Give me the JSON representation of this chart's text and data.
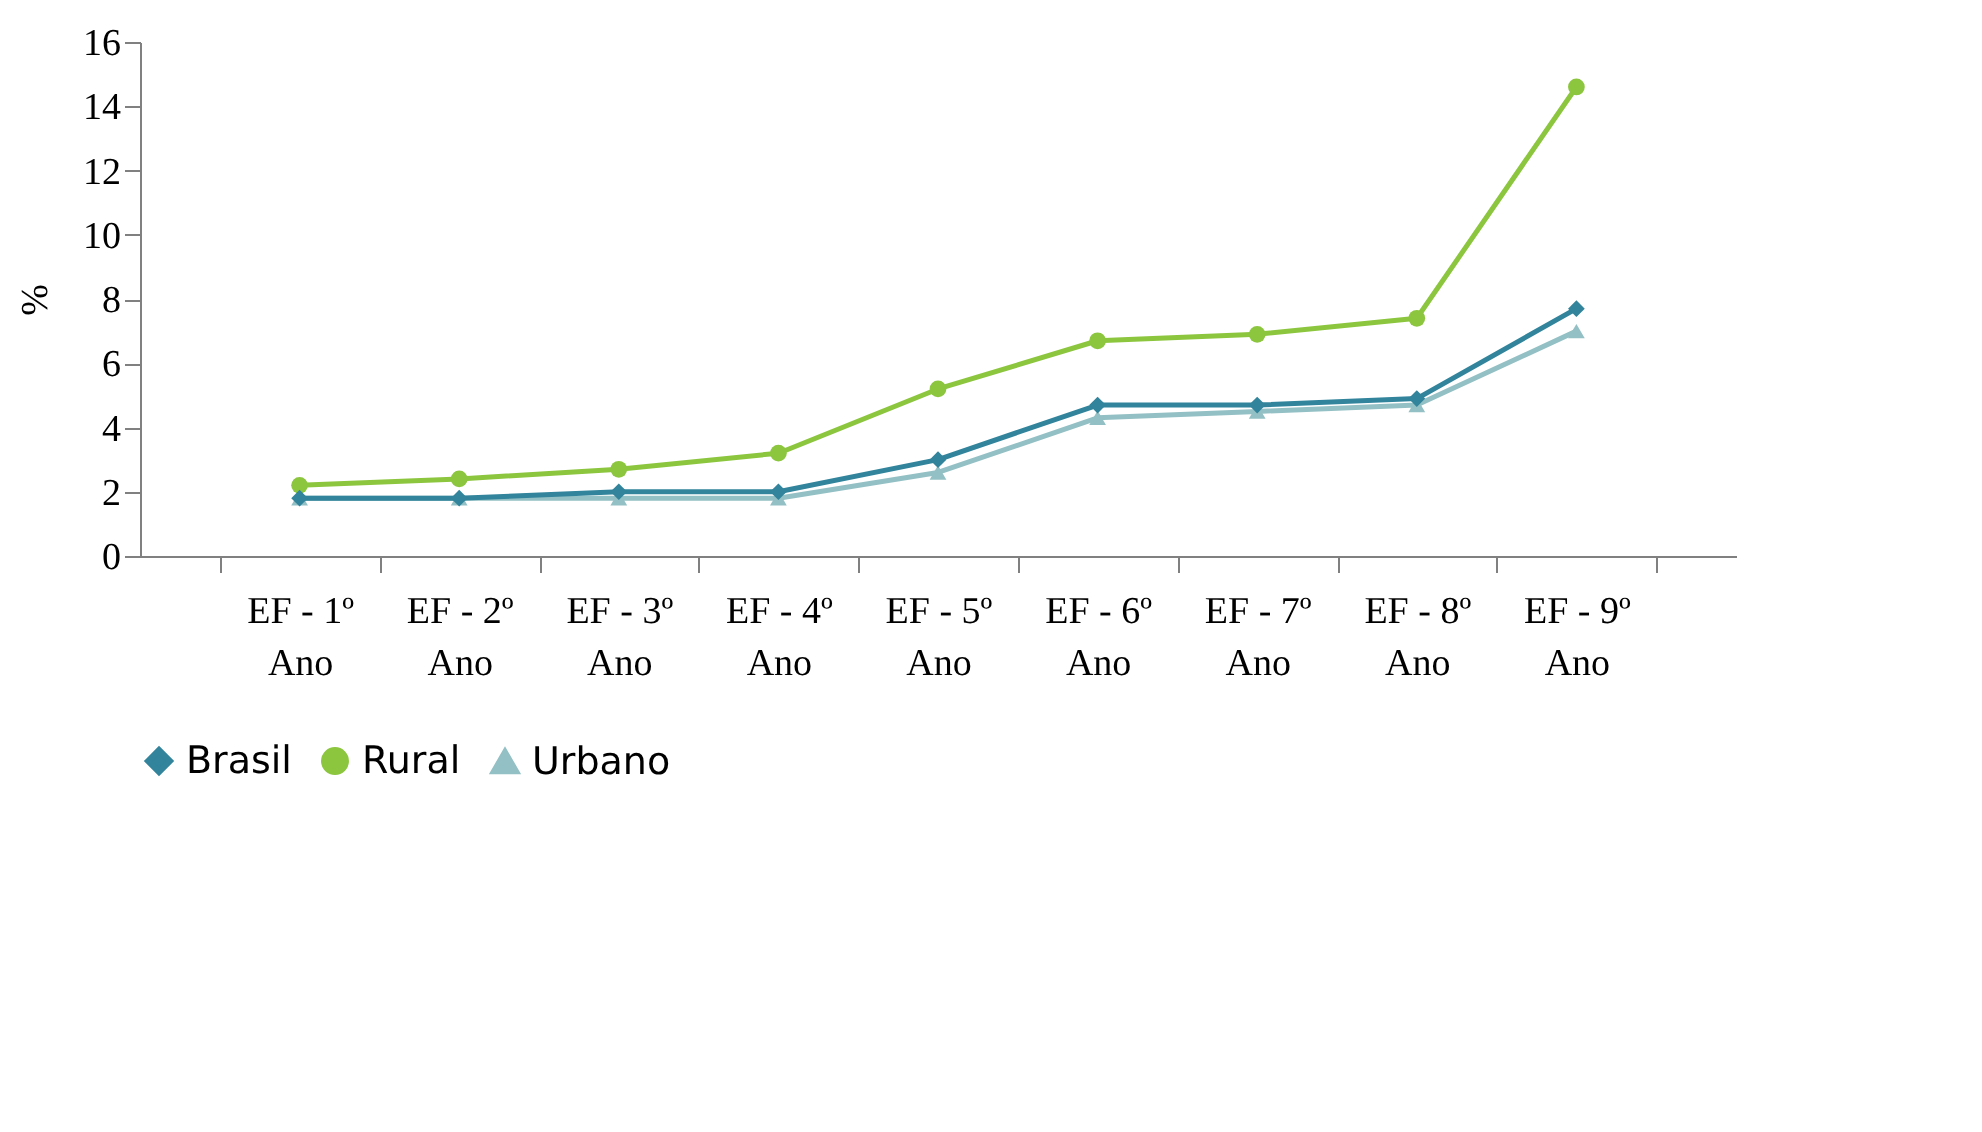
{
  "chart_data": {
    "type": "line",
    "ylabel": "%",
    "categories": [
      "EF - 1º Ano",
      "EF - 2º Ano",
      "EF - 3º Ano",
      "EF - 4º Ano",
      "EF - 5º Ano",
      "EF - 6º Ano",
      "EF - 7º Ano",
      "EF - 8º Ano",
      "EF - 9º Ano"
    ],
    "series": [
      {
        "name": "Brasil",
        "color": "#31849b",
        "marker": "diamond",
        "values": [
          1.8,
          1.8,
          2.0,
          2.0,
          3.0,
          4.7,
          4.7,
          4.9,
          7.7
        ]
      },
      {
        "name": "Rural",
        "color": "#8cc63f",
        "marker": "circle",
        "values": [
          2.2,
          2.4,
          2.7,
          3.2,
          5.2,
          6.7,
          6.9,
          7.4,
          14.6
        ]
      },
      {
        "name": "Urbano",
        "color": "#93c0c4",
        "marker": "triangle",
        "values": [
          1.8,
          1.8,
          1.8,
          1.8,
          2.6,
          4.3,
          4.5,
          4.7,
          7.0
        ]
      }
    ],
    "ylim": [
      0,
      16
    ],
    "yticks": [
      0,
      2,
      4,
      6,
      8,
      10,
      12,
      14,
      16
    ],
    "grid": false,
    "legend": "bottom"
  }
}
